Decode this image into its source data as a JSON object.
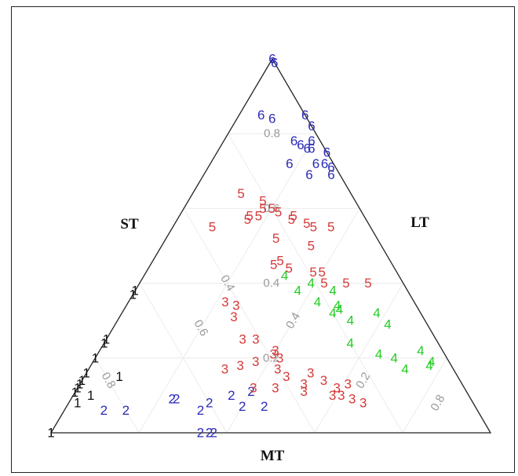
{
  "chart_data": {
    "type": "scatter",
    "subtype": "ternary",
    "axes": {
      "left": "ST",
      "right": "LT",
      "bottom": "MT"
    },
    "gridlines": true,
    "ticks": [
      "0.2",
      "0.4",
      "0.6",
      "0.8"
    ],
    "colors": {
      "1": "#111111",
      "2": "#2b2bb8",
      "3": "#d63a3a",
      "4": "#22cc22",
      "5": "#d63a3a",
      "6": "#2b2bb8"
    },
    "series": [
      {
        "name": "1",
        "points": [
          [
            0.0,
            1.0,
            0.0
          ],
          [
            0.08,
            0.9,
            0.02
          ],
          [
            0.1,
            0.86,
            0.04
          ],
          [
            0.11,
            0.91,
            0.0
          ],
          [
            0.16,
            0.84,
            0.0
          ],
          [
            0.15,
            0.77,
            0.08
          ],
          [
            0.12,
            0.88,
            0.0
          ],
          [
            0.13,
            0.87,
            0.0
          ],
          [
            0.14,
            0.86,
            0.0
          ],
          [
            0.2,
            0.8,
            0.0
          ],
          [
            0.24,
            0.76,
            0.0
          ],
          [
            0.25,
            0.75,
            0.0
          ],
          [
            0.37,
            0.63,
            0.0
          ],
          [
            0.38,
            0.62,
            0.0
          ]
        ]
      },
      {
        "name": "2",
        "points": [
          [
            0.06,
            0.85,
            0.09
          ],
          [
            0.06,
            0.8,
            0.14
          ],
          [
            0.09,
            0.68,
            0.23
          ],
          [
            0.09,
            0.67,
            0.24
          ],
          [
            0.06,
            0.63,
            0.31
          ],
          [
            0.08,
            0.6,
            0.32
          ],
          [
            0.1,
            0.54,
            0.36
          ],
          [
            0.07,
            0.53,
            0.4
          ],
          [
            0.11,
            0.49,
            0.4
          ],
          [
            0.07,
            0.48,
            0.45
          ],
          [
            0.0,
            0.66,
            0.34
          ],
          [
            0.0,
            0.64,
            0.36
          ],
          [
            0.0,
            0.63,
            0.37
          ]
        ]
      },
      {
        "name": "3",
        "points": [
          [
            0.35,
            0.43,
            0.22
          ],
          [
            0.34,
            0.41,
            0.25
          ],
          [
            0.31,
            0.43,
            0.26
          ],
          [
            0.25,
            0.44,
            0.31
          ],
          [
            0.25,
            0.41,
            0.34
          ],
          [
            0.17,
            0.52,
            0.31
          ],
          [
            0.18,
            0.48,
            0.34
          ],
          [
            0.19,
            0.44,
            0.37
          ],
          [
            0.21,
            0.39,
            0.4
          ],
          [
            0.22,
            0.38,
            0.4
          ],
          [
            0.2,
            0.38,
            0.42
          ],
          [
            0.17,
            0.4,
            0.43
          ],
          [
            0.12,
            0.48,
            0.4
          ],
          [
            0.12,
            0.43,
            0.45
          ],
          [
            0.15,
            0.39,
            0.46
          ],
          [
            0.13,
            0.36,
            0.51
          ],
          [
            0.16,
            0.33,
            0.51
          ],
          [
            0.14,
            0.31,
            0.55
          ],
          [
            0.12,
            0.29,
            0.59
          ],
          [
            0.1,
            0.31,
            0.59
          ],
          [
            0.1,
            0.29,
            0.61
          ],
          [
            0.09,
            0.27,
            0.64
          ],
          [
            0.08,
            0.25,
            0.67
          ],
          [
            0.13,
            0.26,
            0.61
          ],
          [
            0.11,
            0.37,
            0.52
          ]
        ]
      },
      {
        "name": "4",
        "points": [
          [
            0.42,
            0.26,
            0.32
          ],
          [
            0.4,
            0.21,
            0.39
          ],
          [
            0.38,
            0.25,
            0.37
          ],
          [
            0.38,
            0.17,
            0.45
          ],
          [
            0.35,
            0.22,
            0.43
          ],
          [
            0.34,
            0.18,
            0.48
          ],
          [
            0.33,
            0.18,
            0.49
          ],
          [
            0.32,
            0.2,
            0.48
          ],
          [
            0.3,
            0.17,
            0.53
          ],
          [
            0.32,
            0.1,
            0.58
          ],
          [
            0.29,
            0.09,
            0.62
          ],
          [
            0.24,
            0.2,
            0.56
          ],
          [
            0.21,
            0.15,
            0.64
          ],
          [
            0.2,
            0.12,
            0.68
          ],
          [
            0.22,
            0.05,
            0.73
          ],
          [
            0.18,
            0.05,
            0.77
          ],
          [
            0.19,
            0.04,
            0.77
          ],
          [
            0.17,
            0.11,
            0.72
          ]
        ]
      },
      {
        "name": "5",
        "points": [
          [
            0.55,
            0.36,
            0.09
          ],
          [
            0.57,
            0.27,
            0.16
          ],
          [
            0.58,
            0.26,
            0.16
          ],
          [
            0.58,
            0.24,
            0.18
          ],
          [
            0.6,
            0.22,
            0.18
          ],
          [
            0.6,
            0.2,
            0.2
          ],
          [
            0.59,
            0.19,
            0.22
          ],
          [
            0.58,
            0.16,
            0.26
          ],
          [
            0.57,
            0.17,
            0.26
          ],
          [
            0.56,
            0.14,
            0.3
          ],
          [
            0.55,
            0.13,
            0.32
          ],
          [
            0.55,
            0.09,
            0.36
          ],
          [
            0.64,
            0.25,
            0.11
          ],
          [
            0.62,
            0.21,
            0.17
          ],
          [
            0.45,
            0.27,
            0.28
          ],
          [
            0.46,
            0.25,
            0.29
          ],
          [
            0.44,
            0.24,
            0.32
          ],
          [
            0.43,
            0.19,
            0.38
          ],
          [
            0.43,
            0.17,
            0.4
          ],
          [
            0.4,
            0.18,
            0.42
          ],
          [
            0.4,
            0.08,
            0.52
          ],
          [
            0.4,
            0.13,
            0.47
          ],
          [
            0.52,
            0.23,
            0.25
          ],
          [
            0.5,
            0.16,
            0.34
          ]
        ]
      },
      {
        "name": "6",
        "points": [
          [
            1.0,
            0.0,
            0.0
          ],
          [
            0.99,
            0.0,
            0.01
          ],
          [
            0.85,
            0.1,
            0.05
          ],
          [
            0.84,
            0.08,
            0.08
          ],
          [
            0.85,
            0.0,
            0.15
          ],
          [
            0.82,
            0.0,
            0.18
          ],
          [
            0.78,
            0.06,
            0.16
          ],
          [
            0.77,
            0.05,
            0.18
          ],
          [
            0.76,
            0.04,
            0.2
          ],
          [
            0.76,
            0.03,
            0.21
          ],
          [
            0.75,
            0.0,
            0.25
          ],
          [
            0.72,
            0.1,
            0.18
          ],
          [
            0.72,
            0.04,
            0.24
          ],
          [
            0.72,
            0.02,
            0.26
          ],
          [
            0.71,
            0.01,
            0.28
          ],
          [
            0.69,
            0.07,
            0.24
          ],
          [
            0.69,
            0.02,
            0.29
          ],
          [
            0.78,
            0.02,
            0.2
          ]
        ]
      }
    ]
  }
}
